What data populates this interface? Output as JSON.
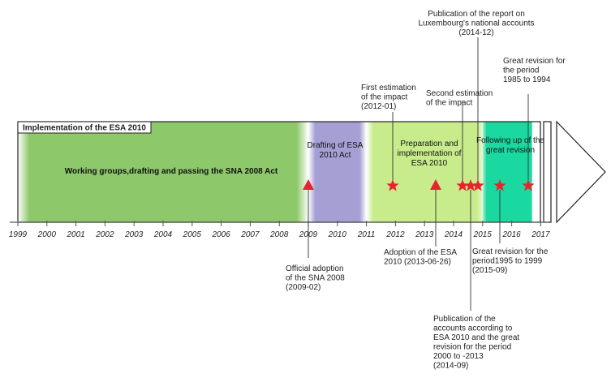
{
  "title": "Implementation of the ESA 2010",
  "axis": {
    "years": [
      "1999",
      "2000",
      "2001",
      "2002",
      "2003",
      "2004",
      "2005",
      "2006",
      "2007",
      "2008",
      "2009",
      "2010",
      "2011",
      "2012",
      "2013",
      "2014",
      "2015",
      "2016",
      "2017"
    ]
  },
  "phases": [
    {
      "id": "working-groups",
      "label": [
        "Working groups,drafting and passing the  SNA 2008 Act"
      ],
      "start": 1999.0,
      "end": 2009.0,
      "color": "#8dc86b"
    },
    {
      "id": "drafting",
      "label": [
        "Drafting of ESA",
        "2010 Act"
      ],
      "start": 2009.0,
      "end": 2011.0,
      "color": "#a59fd4"
    },
    {
      "id": "preparation",
      "label": [
        "Preparation and",
        "implementation of",
        "ESA 2010"
      ],
      "start": 2011.0,
      "end": 2015.0,
      "color": "#c8ec8c"
    },
    {
      "id": "following-up",
      "label": [
        "Following up of the",
        "great revision"
      ],
      "start": 2015.0,
      "end": 2016.7,
      "color": "#19d8a0"
    }
  ],
  "markers": [
    {
      "id": "sna-adoption",
      "shape": "triangle",
      "year": 2009.0
    },
    {
      "id": "first-estimation",
      "shape": "star",
      "year": 2012.0
    },
    {
      "id": "esa-adoption",
      "shape": "triangle",
      "year": 2013.5
    },
    {
      "id": "second-estimation",
      "shape": "star",
      "year": 2014.5
    },
    {
      "id": "publication-2014-09",
      "shape": "star",
      "year": 2014.75
    },
    {
      "id": "luxembourg-report",
      "shape": "star",
      "year": 2014.95
    },
    {
      "id": "revision-1995-1999",
      "shape": "star",
      "year": 2015.75
    },
    {
      "id": "revision-1985-1994",
      "shape": "star",
      "year": 2016.75
    }
  ],
  "annotations": [
    {
      "id": "official-adoption",
      "lines": [
        "Official adoption",
        "of the SNA 2008",
        "(2009-02)"
      ]
    },
    {
      "id": "first-estimation",
      "lines": [
        "First estimation",
        "of the impact",
        "(2012-01)"
      ]
    },
    {
      "id": "adoption-esa",
      "lines": [
        "Adoption of the ESA",
        "2010 (2013-06-26)"
      ]
    },
    {
      "id": "second-estimation",
      "lines": [
        "Second estimation",
        "of the impact"
      ]
    },
    {
      "id": "publication-luxembourg",
      "lines": [
        "Publication of the  report on",
        "Luxembourg's national accounts",
        "(2014-12)"
      ]
    },
    {
      "id": "great-revision-1985",
      "lines": [
        "Great revision for",
        "the period",
        "1985  to 1994"
      ]
    },
    {
      "id": "great-revision-1995",
      "lines": [
        "Great revision for the",
        "period1995  to  1999",
        "(2015-09)"
      ]
    },
    {
      "id": "publication-accounts",
      "lines": [
        "Publication of the",
        "accounts according to",
        "ESA 2010 and the great",
        "revision for the period",
        "2000  to -2013",
        "(2014-09)"
      ]
    }
  ],
  "colors": {
    "marker": "#e8222e",
    "axis": "#555555",
    "frame": "#222222"
  }
}
